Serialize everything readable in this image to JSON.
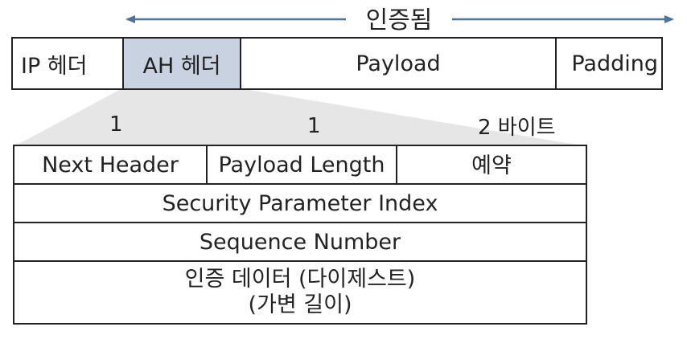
{
  "colors": {
    "line": "#222222",
    "highlight": "#c8d2e1",
    "projection": "#e6e6e6",
    "arrow": "#4f7396"
  },
  "packet": {
    "auth_label": "인증됨",
    "ip_header": "IP 헤더",
    "ah_header": "AH 헤더",
    "payload": "Payload",
    "padding": "Padding"
  },
  "ah": {
    "byte_sizes": [
      "1",
      "1",
      "2 바이트"
    ],
    "next_header": "Next Header",
    "payload_length": "Payload Length",
    "reserved": "예약",
    "spi": "Security Parameter Index",
    "sequence_number": "Sequence Number",
    "auth_data_line1": "인증 데이터 (다이제스트)",
    "auth_data_line2": "(가변 길이)"
  }
}
